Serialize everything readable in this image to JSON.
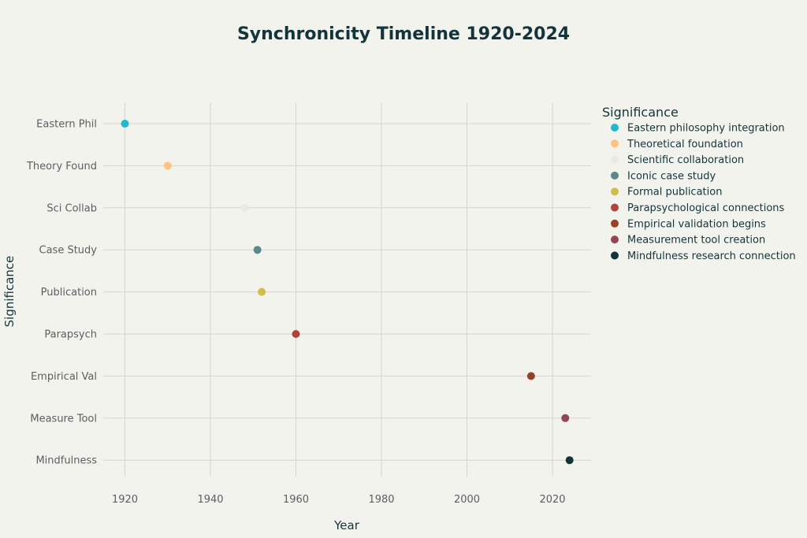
{
  "chart_data": {
    "type": "scatter",
    "title": "Synchronicity Timeline 1920-2024",
    "xlabel": "Year",
    "ylabel": "Significance",
    "xlim": [
      1915,
      2029
    ],
    "x_ticks": [
      1920,
      1940,
      1960,
      1980,
      2000,
      2020
    ],
    "categories": [
      "Eastern Phil",
      "Theory Found",
      "Sci Collab",
      "Case Study",
      "Publication",
      "Parapsych",
      "Empirical Val",
      "Measure Tool",
      "Mindfulness"
    ],
    "grid": true,
    "legend_title": "Significance",
    "legend_position": "right",
    "series": [
      {
        "name": "Eastern philosophy integration",
        "category": "Eastern Phil",
        "x": 1920,
        "color": "#1fb8cd"
      },
      {
        "name": "Theoretical foundation",
        "category": "Theory Found",
        "x": 1930,
        "color": "#ffc185"
      },
      {
        "name": "Scientific collaboration",
        "category": "Sci Collab",
        "x": 1948,
        "color": "#eceae0"
      },
      {
        "name": "Iconic case study",
        "category": "Case Study",
        "x": 1951,
        "color": "#5d878f"
      },
      {
        "name": "Formal publication",
        "category": "Publication",
        "x": 1952,
        "color": "#d2ba4c"
      },
      {
        "name": "Parapsychological connections",
        "category": "Parapsych",
        "x": 1960,
        "color": "#b4413c"
      },
      {
        "name": "Empirical validation begins",
        "category": "Empirical Val",
        "x": 2015,
        "color": "#964325"
      },
      {
        "name": "Measurement tool creation",
        "category": "Measure Tool",
        "x": 2023,
        "color": "#944454"
      },
      {
        "name": "Mindfulness research connection",
        "category": "Mindfulness",
        "x": 2024,
        "color": "#13343b"
      }
    ]
  }
}
